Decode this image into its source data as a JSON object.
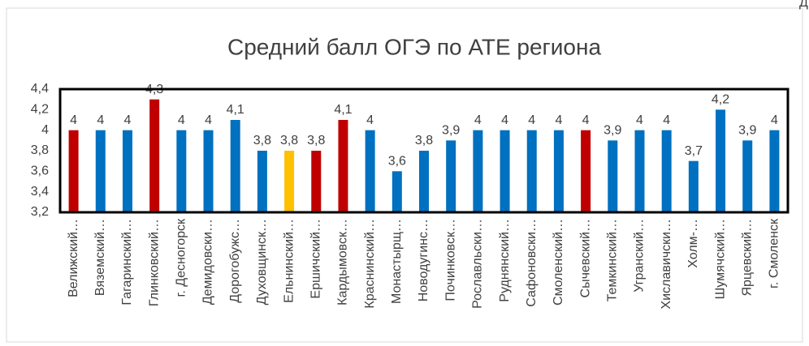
{
  "chart_data": {
    "type": "bar",
    "title": "Средний балл ОГЭ по АТЕ региона",
    "overflow_text": "Д",
    "categories": [
      "Велижский…",
      "Вяземский…",
      "Гагаринский…",
      "Глинковский…",
      "г. Десногорск",
      "Демидовски…",
      "Дорогобужс…",
      "Духовщинск…",
      "Ельнинский…",
      "Ершичский…",
      "Кардымовск…",
      "Краснинский…",
      "Монастырщ…",
      "Новодугинс…",
      "Починковск…",
      "Рославльски…",
      "Руднянский…",
      "Сафоновски…",
      "Смоленский…",
      "Сычевский…",
      "Темкинский…",
      "Угранский…",
      "Хиславичски…",
      "Холм-…",
      "Шумячский…",
      "Ярцевский…",
      "г. Смоленск"
    ],
    "values": [
      4,
      4,
      4,
      4.3,
      4,
      4,
      4.1,
      3.8,
      3.8,
      3.8,
      4.1,
      4,
      3.6,
      3.8,
      3.9,
      4,
      4,
      4,
      4,
      4,
      3.9,
      4,
      4,
      3.7,
      4.2,
      3.9,
      4
    ],
    "value_labels": [
      "4",
      "4",
      "4",
      "4,3",
      "4",
      "4",
      "4,1",
      "3,8",
      "3,8",
      "3,8",
      "4,1",
      "4",
      "3,6",
      "3,8",
      "3,9",
      "4",
      "4",
      "4",
      "4",
      "4",
      "3,9",
      "4",
      "4",
      "3,7",
      "4,2",
      "3,9",
      "4"
    ],
    "colors": [
      "#c00000",
      "#0070c0",
      "#0070c0",
      "#c00000",
      "#0070c0",
      "#0070c0",
      "#0070c0",
      "#0070c0",
      "#ffc000",
      "#c00000",
      "#c00000",
      "#0070c0",
      "#0070c0",
      "#0070c0",
      "#0070c0",
      "#0070c0",
      "#0070c0",
      "#0070c0",
      "#0070c0",
      "#c00000",
      "#0070c0",
      "#0070c0",
      "#0070c0",
      "#0070c0",
      "#0070c0",
      "#0070c0",
      "#0070c0"
    ],
    "ylim": [
      3.2,
      4.4
    ],
    "yticks": [
      {
        "value": 3.2,
        "label": "3,2"
      },
      {
        "value": 3.4,
        "label": "3,4"
      },
      {
        "value": 3.6,
        "label": "3,6"
      },
      {
        "value": 3.8,
        "label": "3,8"
      },
      4,
      {
        "value": 4.2,
        "label": "4,2"
      },
      {
        "value": 4.4,
        "label": "4,4"
      }
    ],
    "grid": false
  }
}
